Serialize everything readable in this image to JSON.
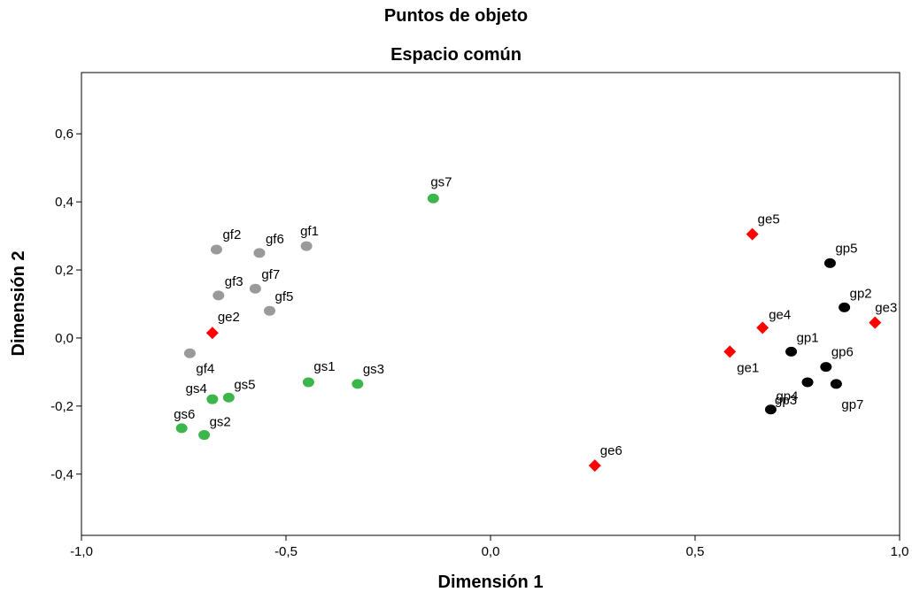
{
  "chart_data": {
    "type": "scatter",
    "title": "Puntos de objeto",
    "subtitle": "Espacio común",
    "xlabel": "Dimensión 1",
    "ylabel": "Dimensión 2",
    "xlim": [
      -1.0,
      1.0
    ],
    "ylim": [
      -0.58,
      0.78
    ],
    "xticks": [
      -1.0,
      -0.5,
      0.0,
      0.5,
      1.0
    ],
    "xtick_labels": [
      "-1,0",
      "-0,5",
      "0,0",
      "0,5",
      "1,0"
    ],
    "yticks": [
      -0.4,
      -0.2,
      0.0,
      0.2,
      0.4,
      0.6
    ],
    "ytick_labels": [
      "-0,4",
      "-0,2",
      "0,0",
      "0,2",
      "0,4",
      "0,6"
    ],
    "grid": false,
    "series": [
      {
        "marker": "circle",
        "color": "#9a9a9a",
        "points": [
          {
            "label": "gf1",
            "x": -0.45,
            "y": 0.27
          },
          {
            "label": "gf2",
            "x": -0.67,
            "y": 0.26
          },
          {
            "label": "gf3",
            "x": -0.665,
            "y": 0.125
          },
          {
            "label": "gf4",
            "x": -0.735,
            "y": -0.045
          },
          {
            "label": "gf5",
            "x": -0.54,
            "y": 0.08
          },
          {
            "label": "gf6",
            "x": -0.565,
            "y": 0.25
          },
          {
            "label": "gf7",
            "x": -0.575,
            "y": 0.145
          }
        ]
      },
      {
        "marker": "circle",
        "color": "#3cb54a",
        "points": [
          {
            "label": "gs1",
            "x": -0.445,
            "y": -0.13
          },
          {
            "label": "gs2",
            "x": -0.7,
            "y": -0.285
          },
          {
            "label": "gs3",
            "x": -0.325,
            "y": -0.135
          },
          {
            "label": "gs4",
            "x": -0.68,
            "y": -0.18
          },
          {
            "label": "gs5",
            "x": -0.64,
            "y": -0.175
          },
          {
            "label": "gs6",
            "x": -0.755,
            "y": -0.265
          },
          {
            "label": "gs7",
            "x": -0.14,
            "y": 0.41
          }
        ]
      },
      {
        "marker": "diamond",
        "color": "#ff0000",
        "points": [
          {
            "label": "ge1",
            "x": 0.585,
            "y": -0.04
          },
          {
            "label": "ge2",
            "x": -0.68,
            "y": 0.015
          },
          {
            "label": "ge3",
            "x": 0.94,
            "y": 0.045
          },
          {
            "label": "ge4",
            "x": 0.665,
            "y": 0.03
          },
          {
            "label": "ge5",
            "x": 0.64,
            "y": 0.305
          },
          {
            "label": "ge6",
            "x": 0.255,
            "y": -0.375
          }
        ]
      },
      {
        "marker": "circle",
        "color": "#000000",
        "points": [
          {
            "label": "gp1",
            "x": 0.735,
            "y": -0.04
          },
          {
            "label": "gp2",
            "x": 0.865,
            "y": 0.09
          },
          {
            "label": "gp3",
            "x": 0.775,
            "y": -0.13
          },
          {
            "label": "gp4",
            "x": 0.685,
            "y": -0.21
          },
          {
            "label": "gp5",
            "x": 0.83,
            "y": 0.22
          },
          {
            "label": "gp6",
            "x": 0.82,
            "y": -0.085
          },
          {
            "label": "gp7",
            "x": 0.845,
            "y": -0.135
          }
        ]
      }
    ]
  }
}
